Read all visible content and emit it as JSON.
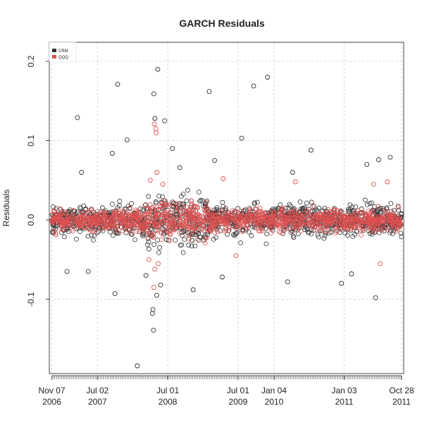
{
  "chart_data": {
    "type": "scatter",
    "title": "GARCH Residuals",
    "xlabel": "",
    "ylabel": "Residuals",
    "x_range": [
      "2006-10-25",
      "2011-11-08"
    ],
    "ylim": [
      -0.2,
      0.2
    ],
    "y_ticks": [
      {
        "value": -0.1,
        "label": "-0.1"
      },
      {
        "value": 0.0,
        "label": "0.0"
      },
      {
        "value": 0.1,
        "label": "0.1"
      },
      {
        "value": 0.2,
        "label": "0.2"
      }
    ],
    "x_ticks": [
      {
        "date": "2006-11-07",
        "line1": "Nov 07",
        "line2": "2006"
      },
      {
        "date": "2007-07-02",
        "line1": "Jul 02",
        "line2": "2007"
      },
      {
        "date": "2008-07-01",
        "line1": "Jul 01",
        "line2": "2008"
      },
      {
        "date": "2009-07-01",
        "line1": "Jul 01",
        "line2": "2009"
      },
      {
        "date": "2010-01-04",
        "line1": "Jan 04",
        "line2": "2010"
      },
      {
        "date": "2011-01-03",
        "line1": "Jan 03",
        "line2": "2011"
      },
      {
        "date": "2011-10-28",
        "line1": "Oct 28",
        "line2": "2011"
      }
    ],
    "grid": true,
    "legend_position": "top-left",
    "marker": "open-circle",
    "series": [
      {
        "name": "CRM",
        "color": "#333333",
        "points": [
          {
            "date": "2007-03-20",
            "y": 0.129
          },
          {
            "date": "2007-10-15",
            "y": 0.171
          },
          {
            "date": "2007-12-03",
            "y": 0.101
          },
          {
            "date": "2007-09-17",
            "y": 0.084
          },
          {
            "date": "2007-10-01",
            "y": -0.093
          },
          {
            "date": "2008-01-25",
            "y": -0.184
          },
          {
            "date": "2008-04-20",
            "y": 0.159
          },
          {
            "date": "2008-05-10",
            "y": 0.19
          },
          {
            "date": "2008-04-25",
            "y": 0.128
          },
          {
            "date": "2008-04-15",
            "y": -0.113
          },
          {
            "date": "2008-04-18",
            "y": -0.139
          },
          {
            "date": "2008-04-12",
            "y": -0.118
          },
          {
            "date": "2008-06-15",
            "y": 0.125
          },
          {
            "date": "2008-05-05",
            "y": -0.095
          },
          {
            "date": "2008-07-25",
            "y": 0.09
          },
          {
            "date": "2009-02-01",
            "y": 0.162
          },
          {
            "date": "2008-11-10",
            "y": -0.088
          },
          {
            "date": "2009-04-10",
            "y": -0.072
          },
          {
            "date": "2009-07-20",
            "y": 0.103
          },
          {
            "date": "2009-09-20",
            "y": 0.169
          },
          {
            "date": "2009-12-01",
            "y": 0.18
          },
          {
            "date": "2010-03-15",
            "y": -0.078
          },
          {
            "date": "2010-07-15",
            "y": 0.088
          },
          {
            "date": "2011-06-15",
            "y": -0.098
          },
          {
            "date": "2011-07-01",
            "y": 0.076
          },
          {
            "date": "2011-08-30",
            "y": 0.079
          },
          {
            "date": "2010-12-20",
            "y": -0.08
          },
          {
            "date": "2011-02-10",
            "y": -0.068
          },
          {
            "date": "2007-05-15",
            "y": -0.065
          },
          {
            "date": "2007-01-25",
            "y": -0.065
          },
          {
            "date": "2007-04-10",
            "y": 0.06
          },
          {
            "date": "2008-03-10",
            "y": -0.07
          },
          {
            "date": "2008-05-25",
            "y": -0.082
          },
          {
            "date": "2008-09-01",
            "y": 0.066
          },
          {
            "date": "2009-03-01",
            "y": 0.075
          },
          {
            "date": "2010-04-10",
            "y": 0.06
          },
          {
            "date": "2011-05-01",
            "y": 0.07
          }
        ]
      },
      {
        "name": "QQQ",
        "color": "#e05050",
        "points": [
          {
            "date": "2008-04-22",
            "y": 0.121
          },
          {
            "date": "2008-04-30",
            "y": 0.115
          },
          {
            "date": "2008-05-02",
            "y": 0.11
          },
          {
            "date": "2008-04-20",
            "y": -0.085
          },
          {
            "date": "2008-04-25",
            "y": -0.062
          },
          {
            "date": "2008-05-12",
            "y": -0.055
          },
          {
            "date": "2008-05-06",
            "y": 0.06
          },
          {
            "date": "2008-04-01",
            "y": 0.05
          },
          {
            "date": "2008-03-25",
            "y": -0.05
          },
          {
            "date": "2008-06-05",
            "y": 0.045
          },
          {
            "date": "2009-04-15",
            "y": 0.052
          },
          {
            "date": "2009-06-20",
            "y": -0.045
          },
          {
            "date": "2010-04-25",
            "y": 0.048
          },
          {
            "date": "2011-06-05",
            "y": 0.045
          },
          {
            "date": "2011-07-10",
            "y": -0.055
          },
          {
            "date": "2011-08-15",
            "y": 0.048
          }
        ]
      }
    ]
  }
}
